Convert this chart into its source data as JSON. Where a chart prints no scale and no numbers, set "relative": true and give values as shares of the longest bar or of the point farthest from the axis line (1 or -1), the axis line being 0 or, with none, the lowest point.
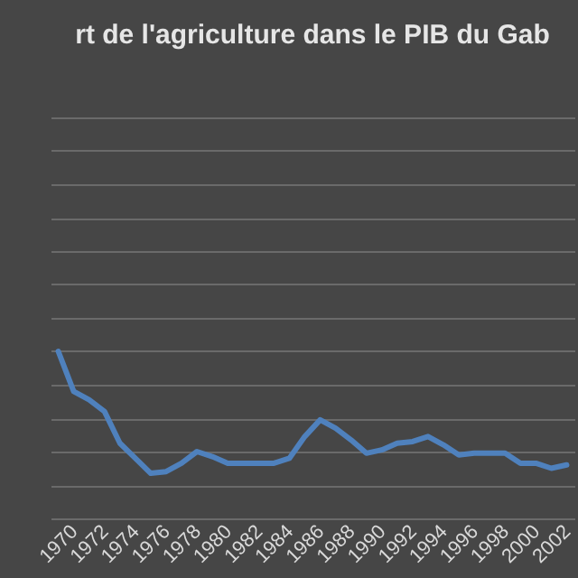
{
  "chart_data": {
    "type": "line",
    "title": "rt de l'agriculture  dans le PIB du Gab",
    "relative": true,
    "grid": "y",
    "legend": false,
    "categories": [
      "1970",
      null,
      "1972",
      null,
      "1974",
      null,
      "1976",
      null,
      "1978",
      null,
      "1980",
      null,
      "1982",
      null,
      "1984",
      null,
      "1986",
      null,
      "1988",
      null,
      "1990",
      null,
      "1992",
      null,
      "1994",
      null,
      "1996",
      null,
      "1998",
      null,
      "2000",
      null,
      "2002",
      null
    ],
    "series": [
      {
        "color": "#4f81bd",
        "values": [
          1,
          0.76,
          0.71,
          0.64,
          0.45,
          0.36,
          0.27,
          0.28,
          0.33,
          0.4,
          0.37,
          0.33,
          0.33,
          0.33,
          0.33,
          0.36,
          0.49,
          0.59,
          0.54,
          0.47,
          0.39,
          0.41,
          0.45,
          0.46,
          0.49,
          0.44,
          0.38,
          0.39,
          0.39,
          0.39,
          0.33,
          0.33,
          0.3,
          0.32
        ]
      }
    ]
  }
}
